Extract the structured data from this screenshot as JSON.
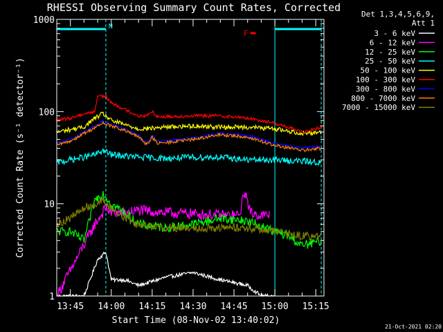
{
  "chart_data": {
    "type": "line",
    "title": "RHESSI Observing Summary Count Rates, Corrected",
    "xlabel": "Start Time (08-Nov-02 13:40:02)",
    "ylabel": "Corrected Count Rate (s⁻¹ detector⁻¹)",
    "yscale": "log",
    "ylim": [
      1,
      1000
    ],
    "xlim": [
      "13:40",
      "15:18"
    ],
    "grid": false,
    "y_ticks": [
      "1",
      "10",
      "100",
      "1000"
    ],
    "x_ticks": [
      "13:45",
      "14:00",
      "14:15",
      "14:30",
      "14:45",
      "15:00",
      "15:15"
    ],
    "legend": {
      "placement": "outside-right",
      "header": [
        "Det 1,3,4,5,6,9,",
        "Att 1"
      ]
    },
    "annotations": {
      "night_label": "N",
      "flare_label": "F",
      "timestamp": "21-Oct-2021 02:20"
    },
    "night_intervals": [
      [
        "13:40",
        "13:58"
      ],
      [
        "15:00",
        "15:17"
      ]
    ],
    "flare_intervals": [
      [
        "14:51",
        "14:53"
      ]
    ],
    "series": [
      {
        "name": "3 - 6 keV",
        "color": "#ffffff",
        "x": [
          "13:40",
          "13:50",
          "13:55",
          "13:58",
          "14:00",
          "14:05",
          "14:10",
          "14:20",
          "14:30",
          "14:40",
          "14:50",
          "14:55",
          "15:00"
        ],
        "y": [
          1,
          1,
          2.5,
          3,
          1.5,
          1.5,
          1.3,
          1.6,
          1.8,
          1.5,
          1.3,
          1,
          1
        ]
      },
      {
        "name": "6 - 12 keV",
        "color": "#ff00ff",
        "x": [
          "13:40",
          "13:54",
          "13:58",
          "14:00",
          "14:05",
          "14:10",
          "14:20",
          "14:30",
          "14:40",
          "14:47",
          "14:49",
          "14:51",
          "14:55",
          "14:58"
        ],
        "y": [
          1,
          6,
          9,
          8,
          8,
          8.5,
          8,
          7.8,
          7.5,
          7.5,
          14,
          8,
          7.5,
          7.5
        ]
      },
      {
        "name": "12 - 25 keV",
        "color": "#00ff00",
        "x": [
          "13:40",
          "13:45",
          "13:50",
          "13:54",
          "13:57",
          "14:00",
          "14:05",
          "14:10",
          "14:20",
          "14:30",
          "14:40",
          "14:50",
          "15:00",
          "15:05",
          "15:10",
          "15:17"
        ],
        "y": [
          5,
          5,
          4,
          11,
          13,
          10,
          8,
          6,
          5.5,
          6,
          7,
          6.5,
          5,
          4.5,
          3.5,
          4
        ]
      },
      {
        "name": "25 - 50 keV",
        "color": "#00ffff",
        "x": [
          "13:40",
          "13:45",
          "13:50",
          "13:54",
          "13:57",
          "14:00",
          "14:05",
          "14:10",
          "14:20",
          "14:30",
          "14:40",
          "14:50",
          "15:00",
          "15:10",
          "15:17"
        ],
        "y": [
          28,
          30,
          32,
          34,
          38,
          34,
          33,
          32,
          31,
          32,
          32,
          30,
          30,
          29,
          28
        ]
      },
      {
        "name": "50 - 100 keV",
        "color": "#ffff00",
        "x": [
          "13:40",
          "13:45",
          "13:50",
          "13:54",
          "13:57",
          "14:00",
          "14:05",
          "14:10",
          "14:15",
          "14:20",
          "14:30",
          "14:40",
          "14:50",
          "15:00",
          "15:10",
          "15:17"
        ],
        "y": [
          60,
          64,
          68,
          85,
          95,
          80,
          72,
          65,
          66,
          68,
          70,
          68,
          68,
          65,
          58,
          60
        ]
      },
      {
        "name": "100 - 300 keV",
        "color": "#ff0000",
        "x": [
          "13:40",
          "13:45",
          "13:50",
          "13:54",
          "13:55",
          "13:58",
          "14:00",
          "14:05",
          "14:10",
          "14:13",
          "14:15",
          "14:17",
          "14:20",
          "14:30",
          "14:40",
          "14:50",
          "15:00",
          "15:10",
          "15:17"
        ],
        "y": [
          80,
          85,
          95,
          100,
          150,
          145,
          125,
          105,
          90,
          90,
          100,
          88,
          88,
          90,
          90,
          85,
          75,
          60,
          68
        ]
      },
      {
        "name": "300 - 800 keV",
        "color": "#0000ff",
        "x": [
          "13:40",
          "13:45",
          "13:50",
          "13:54",
          "13:57",
          "14:00",
          "14:05",
          "14:10",
          "14:13",
          "14:15",
          "14:17",
          "14:20",
          "14:30",
          "14:40",
          "14:50",
          "15:00",
          "15:10",
          "15:17"
        ],
        "y": [
          45,
          50,
          60,
          70,
          78,
          72,
          65,
          55,
          45,
          55,
          47,
          48,
          52,
          58,
          55,
          45,
          40,
          42
        ]
      },
      {
        "name": "800 - 7000 keV",
        "color": "#ff8000",
        "x": [
          "13:40",
          "13:45",
          "13:50",
          "13:54",
          "13:57",
          "14:00",
          "14:05",
          "14:10",
          "14:13",
          "14:15",
          "14:17",
          "14:20",
          "14:30",
          "14:40",
          "14:50",
          "15:00",
          "15:10",
          "15:17"
        ],
        "y": [
          43,
          48,
          58,
          67,
          75,
          70,
          62,
          53,
          44,
          53,
          45,
          46,
          50,
          56,
          53,
          43,
          38,
          40
        ]
      },
      {
        "name": "7000 - 15000 keV",
        "color": "#808000",
        "x": [
          "13:40",
          "13:45",
          "13:50",
          "13:54",
          "13:57",
          "14:00",
          "14:05",
          "14:10",
          "14:20",
          "14:30",
          "14:40",
          "14:50",
          "15:00",
          "15:10",
          "15:17"
        ],
        "y": [
          6,
          7,
          9,
          10,
          10.5,
          9,
          7,
          6,
          5.5,
          5.5,
          5.5,
          5.5,
          5,
          4.5,
          4.5
        ]
      }
    ]
  }
}
